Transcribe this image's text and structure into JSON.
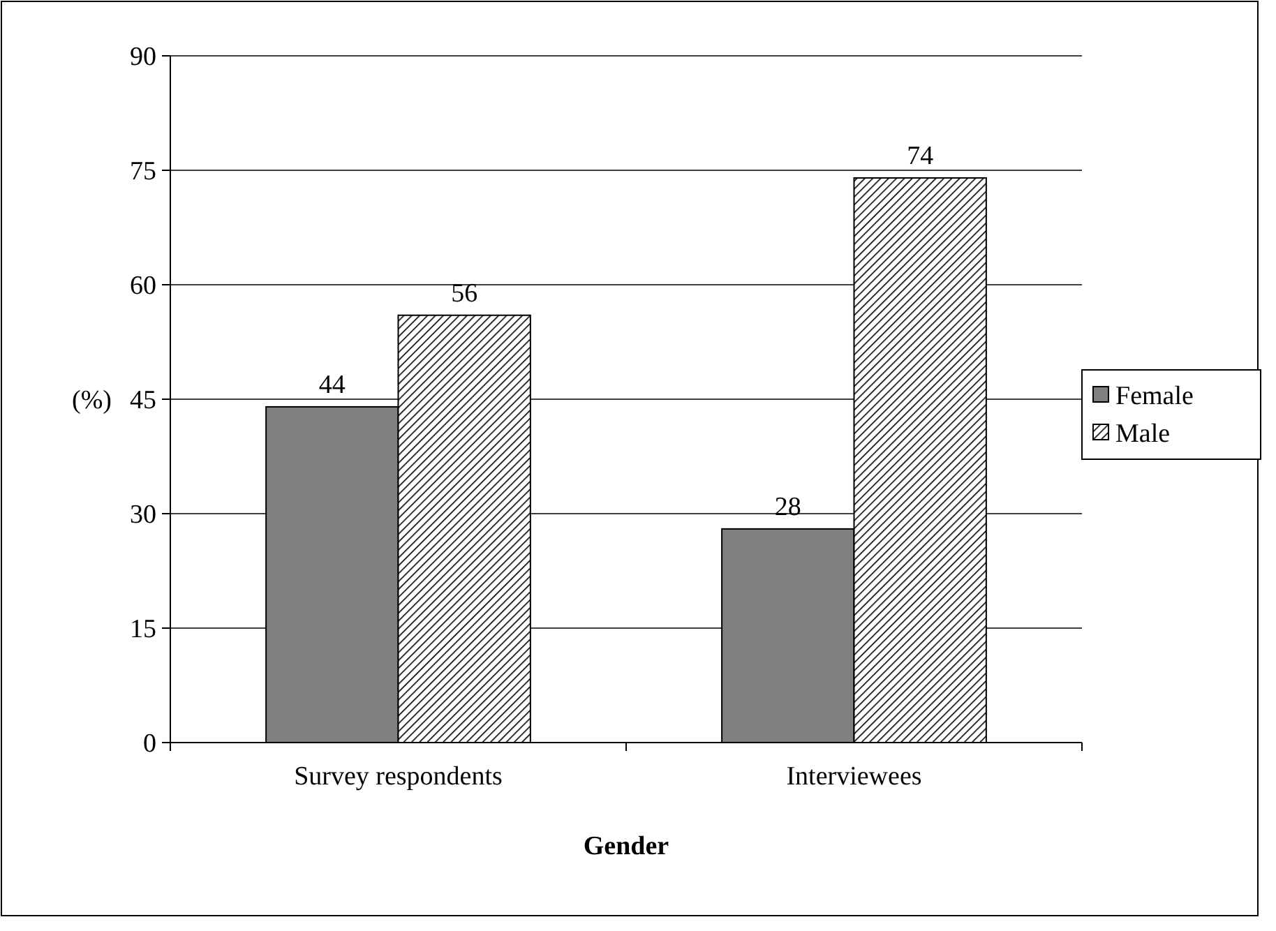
{
  "chart_data": {
    "type": "bar",
    "xlabel": "Gender",
    "ylabel": "(%)",
    "categories": [
      "Survey respondents",
      "Interviewees"
    ],
    "series": [
      {
        "name": "Female",
        "color": "#808080",
        "values": [
          44,
          28
        ]
      },
      {
        "name": "Male",
        "color": "#000000",
        "values": [
          56,
          74
        ]
      }
    ],
    "ylim": [
      0,
      90
    ],
    "yticks": [
      0,
      15,
      30,
      45,
      60,
      75,
      90
    ],
    "grid": "y",
    "legend": "right",
    "data_labels": true
  }
}
